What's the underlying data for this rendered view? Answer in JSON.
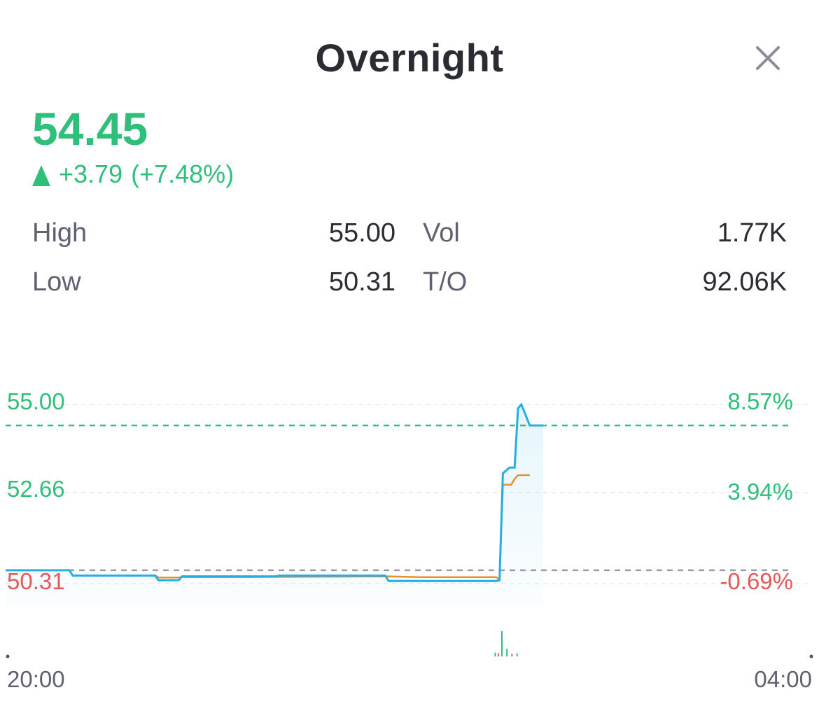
{
  "header": {
    "title": "Overnight",
    "close_icon": "close-icon"
  },
  "quote": {
    "price": "54.45",
    "change": "+3.79",
    "change_pct": "(+7.48%)",
    "direction_icon": "up-triangle-icon",
    "colors": {
      "up": "#2fbf7a",
      "down": "#e35a5a",
      "line": "#27aee0",
      "avg_line": "#e8902a"
    }
  },
  "stats": {
    "high_label": "High",
    "high_value": "55.00",
    "low_label": "Low",
    "low_value": "50.31",
    "vol_label": "Vol",
    "vol_value": "1.77K",
    "to_label": "T/O",
    "to_value": "92.06K"
  },
  "chart_data": {
    "type": "line",
    "y_left_ticks": [
      "55.00",
      "52.66",
      "50.31"
    ],
    "y_right_ticks": [
      "8.57%",
      "3.94%",
      "-0.69%"
    ],
    "x_ticks": [
      "20:00",
      "04:00"
    ],
    "ylim": [
      50.31,
      55.0
    ],
    "prev_close": 50.66,
    "last_price": 54.45,
    "xlim": [
      0,
      480
    ],
    "series": [
      {
        "key": "price",
        "x": [
          0,
          38,
          40,
          89,
          91,
          103,
          105,
          161,
          163,
          226,
          228,
          292,
          294,
          296,
          300,
          303,
          305,
          307,
          312,
          320
        ],
        "y": [
          50.66,
          50.66,
          50.52,
          50.52,
          50.4,
          50.4,
          50.5,
          50.5,
          50.52,
          50.52,
          50.38,
          50.38,
          50.4,
          53.2,
          53.35,
          53.35,
          54.9,
          55.0,
          54.45,
          54.45
        ]
      },
      {
        "key": "avg",
        "x": [
          40,
          89,
          91,
          103,
          105,
          140,
          228,
          246,
          292,
          294,
          296,
          301,
          303,
          305,
          312
        ],
        "y": [
          50.52,
          50.52,
          50.47,
          50.47,
          50.48,
          50.48,
          50.5,
          50.48,
          50.48,
          50.42,
          52.9,
          52.9,
          53.05,
          53.15,
          53.15
        ]
      }
    ],
    "volume": {
      "x": [
        291,
        293,
        295,
        298,
        301,
        304
      ],
      "v": [
        0.15,
        0.12,
        1.0,
        0.3,
        0.1,
        0.12
      ]
    }
  }
}
